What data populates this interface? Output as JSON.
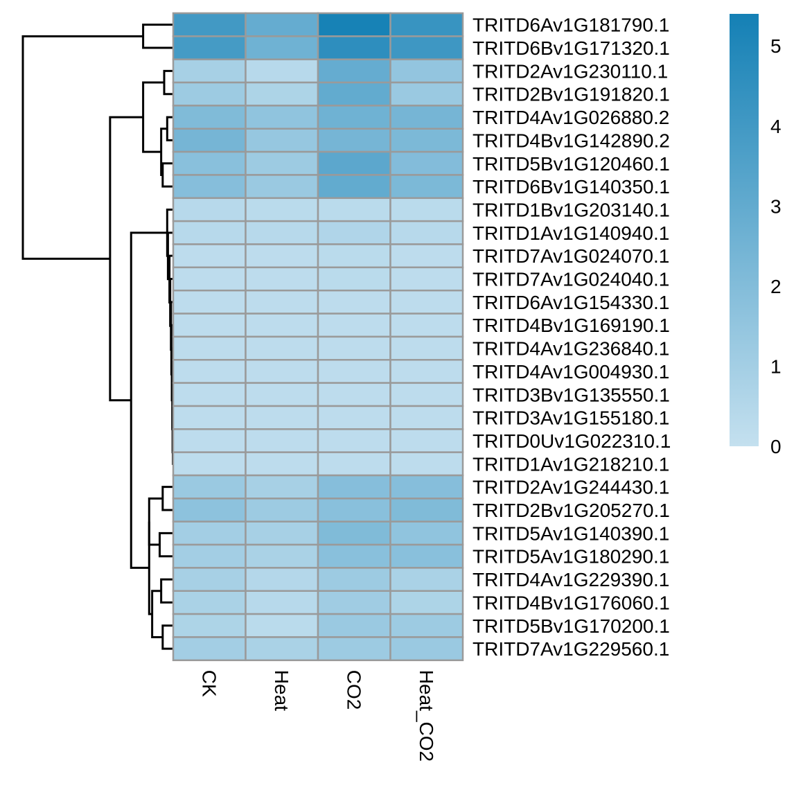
{
  "chart_data": {
    "type": "heatmap",
    "title": "",
    "columns": [
      "CK",
      "Heat",
      "CO2",
      "Heat_CO2"
    ],
    "rows": [
      "TRITD6Av1G181790.1",
      "TRITD6Bv1G171320.1",
      "TRITD2Av1G230110.1",
      "TRITD2Bv1G191820.1",
      "TRITD4Av1G026880.2",
      "TRITD4Bv1G142890.2",
      "TRITD5Bv1G120460.1",
      "TRITD6Bv1G140350.1",
      "TRITD1Bv1G203140.1",
      "TRITD1Av1G140940.1",
      "TRITD7Av1G024070.1",
      "TRITD7Av1G024040.1",
      "TRITD6Av1G154330.1",
      "TRITD4Bv1G169190.1",
      "TRITD4Av1G236840.1",
      "TRITD4Av1G004930.1",
      "TRITD3Bv1G135550.1",
      "TRITD3Av1G155180.1",
      "TRITD0Uv1G022310.1",
      "TRITD1Av1G218210.1",
      "TRITD2Av1G244430.1",
      "TRITD2Bv1G205270.1",
      "TRITD5Av1G140390.1",
      "TRITD5Av1G180290.1",
      "TRITD4Av1G229390.1",
      "TRITD4Bv1G176060.1",
      "TRITD5Bv1G170200.1",
      "TRITD7Av1G229560.1"
    ],
    "values": [
      [
        4.0,
        2.9,
        5.3,
        4.3
      ],
      [
        3.9,
        2.6,
        4.6,
        4.1
      ],
      [
        0.9,
        0.4,
        2.9,
        1.5
      ],
      [
        1.2,
        0.7,
        3.0,
        1.3
      ],
      [
        2.1,
        1.6,
        2.6,
        2.4
      ],
      [
        2.4,
        1.4,
        2.4,
        2.2
      ],
      [
        1.8,
        1.2,
        3.2,
        2.0
      ],
      [
        1.9,
        1.3,
        3.0,
        2.2
      ],
      [
        0.4,
        0.3,
        0.3,
        0.3
      ],
      [
        0.4,
        0.4,
        0.6,
        0.4
      ],
      [
        0.2,
        0.2,
        0.3,
        0.2
      ],
      [
        0.2,
        0.2,
        0.3,
        0.2
      ],
      [
        0.2,
        0.2,
        0.2,
        0.2
      ],
      [
        0.2,
        0.2,
        0.2,
        0.2
      ],
      [
        0.2,
        0.2,
        0.2,
        0.2
      ],
      [
        0.2,
        0.2,
        0.2,
        0.2
      ],
      [
        0.2,
        0.2,
        0.2,
        0.2
      ],
      [
        0.2,
        0.2,
        0.2,
        0.2
      ],
      [
        0.2,
        0.2,
        0.2,
        0.2
      ],
      [
        0.2,
        0.2,
        0.2,
        0.2
      ],
      [
        1.3,
        0.9,
        1.9,
        1.9
      ],
      [
        1.7,
        1.2,
        1.8,
        2.1
      ],
      [
        1.0,
        0.9,
        2.1,
        1.6
      ],
      [
        1.0,
        0.8,
        1.8,
        1.8
      ],
      [
        0.9,
        0.5,
        1.2,
        0.8
      ],
      [
        0.8,
        0.4,
        1.1,
        0.7
      ],
      [
        0.7,
        0.3,
        1.3,
        1.2
      ],
      [
        1.0,
        0.8,
        1.2,
        1.3
      ]
    ],
    "colorbar": {
      "min": 0,
      "max": 5.4,
      "ticks": [
        0,
        1,
        2,
        3,
        4,
        5
      ],
      "tick_labels": [
        "0",
        "1",
        "2",
        "3",
        "4",
        "5"
      ],
      "color_low": "#c4e0ef",
      "color_high": "#1480b5"
    },
    "cell_border_color": "#9a9a9a",
    "dendrogram": {
      "merges": [
        [
          [
            0
          ],
          [
            1
          ]
        ],
        [
          [
            2
          ],
          [
            3
          ]
        ],
        [
          [
            4
          ],
          [
            5
          ]
        ],
        [
          [
            6
          ],
          [
            7
          ]
        ],
        [
          [
            4,
            5
          ],
          [
            6,
            7
          ]
        ],
        [
          [
            2,
            3
          ],
          [
            4,
            5,
            6,
            7
          ]
        ],
        [
          [
            16
          ],
          [
            17
          ]
        ],
        [
          [
            18
          ],
          [
            19
          ]
        ],
        [
          [
            16,
            17
          ],
          [
            18,
            19
          ]
        ],
        [
          [
            15
          ],
          [
            16,
            17,
            18,
            19
          ]
        ],
        [
          [
            14
          ],
          [
            15,
            16,
            17,
            18,
            19
          ]
        ],
        [
          [
            13
          ],
          [
            14,
            15,
            16,
            17,
            18,
            19
          ]
        ],
        [
          [
            12
          ],
          [
            13,
            14,
            15,
            16,
            17,
            18,
            19
          ]
        ],
        [
          [
            11
          ],
          [
            12,
            13,
            14,
            15,
            16,
            17,
            18,
            19
          ]
        ],
        [
          [
            10
          ],
          [
            11,
            12,
            13,
            14,
            15,
            16,
            17,
            18,
            19
          ]
        ],
        [
          [
            9
          ],
          [
            10,
            11,
            12,
            13,
            14,
            15,
            16,
            17,
            18,
            19
          ]
        ],
        [
          [
            8
          ],
          [
            9,
            10,
            11,
            12,
            13,
            14,
            15,
            16,
            17,
            18,
            19
          ]
        ],
        [
          [
            20
          ],
          [
            21
          ]
        ],
        [
          [
            22
          ],
          [
            23
          ]
        ],
        [
          [
            20,
            21
          ],
          [
            22,
            23
          ]
        ],
        [
          [
            24
          ],
          [
            25
          ]
        ],
        [
          [
            26
          ],
          [
            27
          ]
        ],
        [
          [
            24,
            25
          ],
          [
            26,
            27
          ]
        ],
        [
          [
            20,
            21,
            22,
            23
          ],
          [
            24,
            25,
            26,
            27
          ]
        ],
        [
          [
            8,
            9,
            10,
            11,
            12,
            13,
            14,
            15,
            16,
            17,
            18,
            19
          ],
          [
            20,
            21,
            22,
            23,
            24,
            25,
            26,
            27
          ]
        ],
        [
          [
            2,
            3,
            4,
            5,
            6,
            7
          ],
          [
            8,
            9,
            10,
            11,
            12,
            13,
            14,
            15,
            16,
            17,
            18,
            19,
            20,
            21,
            22,
            23,
            24,
            25,
            26,
            27
          ]
        ],
        [
          [
            0,
            1
          ],
          [
            2,
            3,
            4,
            5,
            6,
            7,
            8,
            9,
            10,
            11,
            12,
            13,
            14,
            15,
            16,
            17,
            18,
            19,
            20,
            21,
            22,
            23,
            24,
            25,
            26,
            27
          ]
        ]
      ],
      "heights": [
        0.2,
        0.06,
        0.04,
        0.07,
        0.08,
        0.2,
        0.001,
        0.002,
        0.004,
        0.006,
        0.009,
        0.012,
        0.015,
        0.02,
        0.025,
        0.035,
        0.04,
        0.07,
        0.09,
        0.16,
        0.08,
        0.07,
        0.14,
        0.16,
        0.28,
        0.42,
        1.0
      ]
    }
  }
}
